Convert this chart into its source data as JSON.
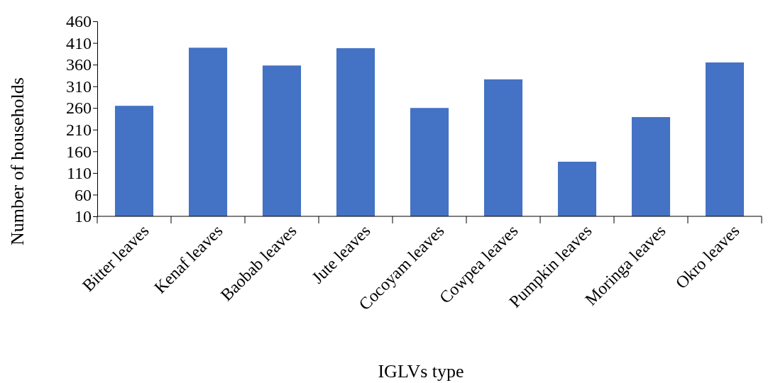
{
  "chart_data": {
    "type": "bar",
    "xlabel": "IGLVs type",
    "ylabel": "Number of households",
    "categories": [
      "Bitter leaves",
      "Kenaf leaves",
      "Baobab leaves",
      "Jute leaves",
      "Cocoyam leaves",
      "Cowpea leaves",
      "Pumpkin leaves",
      "Moringa leaves",
      "Okro leaves"
    ],
    "values": [
      265,
      399,
      358,
      398,
      260,
      326,
      136,
      239,
      365
    ],
    "color": "#4472c4",
    "ylim": [
      10,
      460
    ],
    "yticks": [
      10,
      60,
      110,
      160,
      210,
      260,
      310,
      360,
      410,
      460
    ],
    "grid": false
  }
}
